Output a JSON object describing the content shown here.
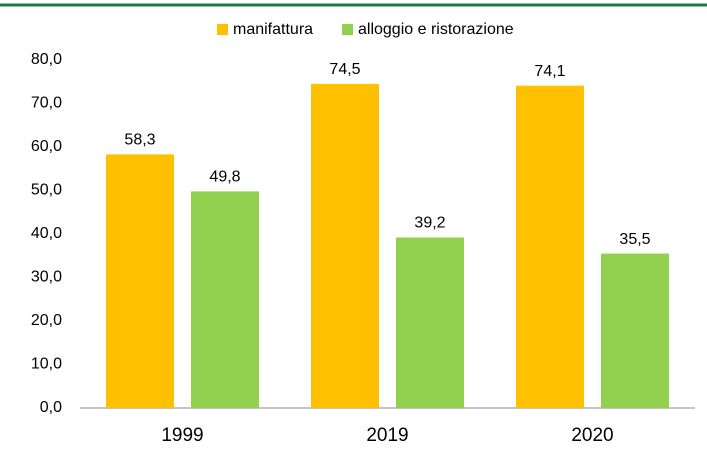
{
  "chart_data": {
    "type": "bar",
    "categories": [
      "1999",
      "2019",
      "2020"
    ],
    "series": [
      {
        "name": "manifattura",
        "color": "#ffc000",
        "values": [
          58.3,
          74.5,
          74.1
        ],
        "value_labels": [
          "58,3",
          "74,5",
          "74,1"
        ]
      },
      {
        "name": "alloggio e ristorazione",
        "color": "#92d050",
        "values": [
          49.8,
          39.2,
          35.5
        ],
        "value_labels": [
          "49,8",
          "39,2",
          "35,5"
        ]
      }
    ],
    "ylim": [
      0,
      80
    ],
    "yticks": [
      {
        "value": 0,
        "label": "0,0"
      },
      {
        "value": 10,
        "label": "10,0"
      },
      {
        "value": 20,
        "label": "20,0"
      },
      {
        "value": 30,
        "label": "30,0"
      },
      {
        "value": 40,
        "label": "40,0"
      },
      {
        "value": 50,
        "label": "50,0"
      },
      {
        "value": 60,
        "label": "60,0"
      },
      {
        "value": 70,
        "label": "70,0"
      },
      {
        "value": 80,
        "label": "80,0"
      }
    ],
    "grid": false,
    "legend": "top"
  }
}
